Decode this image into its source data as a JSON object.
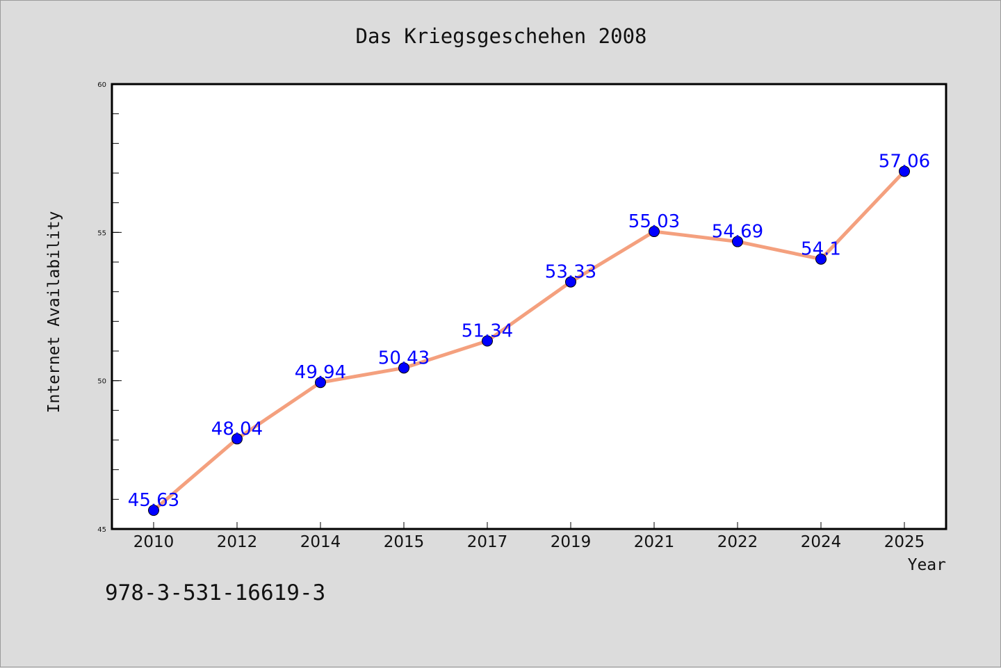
{
  "chart_data": {
    "type": "line",
    "title": "Das Kriegsgeschehen 2008",
    "xlabel": "Year",
    "ylabel": "Internet Availability",
    "categories": [
      "2010",
      "2012",
      "2014",
      "2015",
      "2017",
      "2019",
      "2021",
      "2022",
      "2024",
      "2025"
    ],
    "values": [
      45.63,
      48.04,
      49.94,
      50.43,
      51.34,
      53.33,
      55.03,
      54.69,
      54.1,
      57.06
    ],
    "data_labels": [
      "45.63",
      "48.04",
      "49.94",
      "50.43",
      "51.34",
      "53.33",
      "55.03",
      "54.69",
      "54.1",
      "57.06"
    ],
    "ylim": [
      45,
      60
    ],
    "y_ticks": [
      "45",
      "50",
      "55",
      "60"
    ],
    "y_tick_values": [
      45,
      50,
      55,
      60
    ],
    "y_minor_step": 1,
    "grid": false,
    "legend": "none",
    "line_color": "#f4a07e",
    "marker_color": "#0000ff",
    "label_color": "#0000ff",
    "plot_background": "#ffffff",
    "background": "#dcdcdc"
  },
  "footer": {
    "note": "978-3-531-16619-3"
  }
}
